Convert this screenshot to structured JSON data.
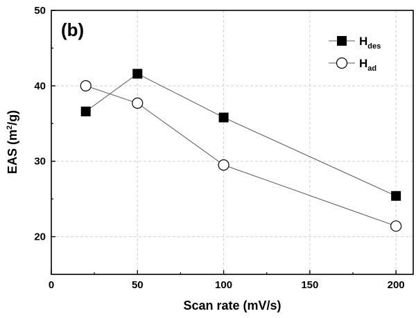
{
  "chart_data": {
    "type": "line",
    "panel_label": "(b)",
    "xlabel": "Scan rate (mV/s)",
    "ylabel": {
      "main": "EAS (m",
      "sup": "2",
      "tail": "/g)"
    },
    "xlim": [
      0,
      210
    ],
    "ylim": [
      15,
      50
    ],
    "xticks": [
      0,
      50,
      100,
      150,
      200
    ],
    "yticks": [
      20,
      30,
      40,
      50
    ],
    "grid": true,
    "legend_position": "top-right",
    "series": [
      {
        "name": "H",
        "name_sub": "des",
        "marker": "filled-square",
        "color": "#000000",
        "x": [
          20,
          50,
          100,
          200
        ],
        "y": [
          36.6,
          41.6,
          35.8,
          25.4
        ]
      },
      {
        "name": "H",
        "name_sub": "ad",
        "marker": "open-circle",
        "color": "#000000",
        "x": [
          20,
          50,
          100,
          200
        ],
        "y": [
          40.0,
          37.7,
          29.5,
          21.4
        ]
      }
    ]
  }
}
